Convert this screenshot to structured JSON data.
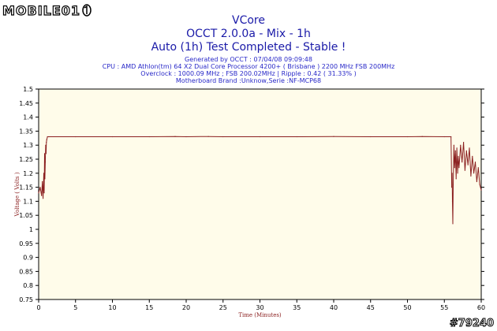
{
  "logo": {
    "text": "MOBILE01"
  },
  "watermark": "#79240",
  "colors": {
    "background": "#fffcea",
    "series": "#8b2020",
    "title": "#1a1aa8",
    "info": "#2828c8"
  },
  "chart_data": {
    "type": "line",
    "title": "VCore",
    "subtitle": "OCCT 2.0.0a - Mix - 1h",
    "status": "Auto (1h) Test Completed - Stable !",
    "info": [
      "Generated by OCCT : 07/04/08 09:09:48",
      "CPU : AMD Athlon(tm) 64 X2 Dual Core Processor 4200+ ( Brisbane ) 2200 MHz FSB 200MHz",
      "Overclock : 1000.09 MHz ; FSB 200.02MHz | Ripple : 0.42 ( 31.33% )",
      "Motherboard Brand :Unknow,Serie :NF-MCP68"
    ],
    "xlabel": "Time (Minutes)",
    "ylabel": "Voltage ( Volts )",
    "xlim": [
      0,
      60
    ],
    "ylim": [
      0.75,
      1.5
    ],
    "xticks": [
      "0",
      "5",
      "10",
      "15",
      "20",
      "25",
      "30",
      "35",
      "40",
      "45",
      "50",
      "55",
      "60"
    ],
    "yticks": [
      "0.75",
      "0.8",
      "0.85",
      "0.9",
      "0.95",
      "1",
      "1.05",
      "1.1",
      "1.15",
      "1.2",
      "1.25",
      "1.3",
      "1.35",
      "1.4",
      "1.45",
      "1.5"
    ],
    "grid": false,
    "series": [
      {
        "x": [
          0,
          0.2,
          0.4,
          0.5,
          0.6,
          0.7,
          0.75,
          0.8,
          0.85,
          0.9,
          0.95,
          1.0,
          1.05,
          1.1,
          1.2,
          1.4,
          5,
          10,
          15,
          18.5,
          20,
          23,
          25,
          30,
          35,
          40,
          45,
          50,
          52,
          55,
          55.9,
          56.0,
          56.05,
          56.1,
          56.15,
          56.2,
          56.3,
          56.4,
          56.5,
          56.6,
          56.7,
          56.8,
          56.9,
          57.0,
          57.2,
          57.4,
          57.6,
          57.8,
          58.0,
          58.2,
          58.4,
          58.6,
          58.8,
          59.0,
          59.2,
          59.4,
          59.6,
          59.8,
          60.0
        ],
        "y": [
          1.13,
          1.15,
          1.12,
          1.17,
          1.11,
          1.2,
          1.13,
          1.27,
          1.18,
          1.24,
          1.3,
          1.27,
          1.31,
          1.32,
          1.33,
          1.33,
          1.33,
          1.33,
          1.33,
          1.331,
          1.33,
          1.331,
          1.33,
          1.33,
          1.33,
          1.331,
          1.33,
          1.33,
          1.331,
          1.33,
          1.33,
          1.15,
          1.2,
          1.1,
          1.02,
          1.16,
          1.3,
          1.22,
          1.28,
          1.18,
          1.29,
          1.2,
          1.26,
          1.22,
          1.3,
          1.24,
          1.31,
          1.21,
          1.28,
          1.23,
          1.29,
          1.19,
          1.26,
          1.2,
          1.24,
          1.17,
          1.22,
          1.16,
          1.14
        ]
      }
    ]
  }
}
